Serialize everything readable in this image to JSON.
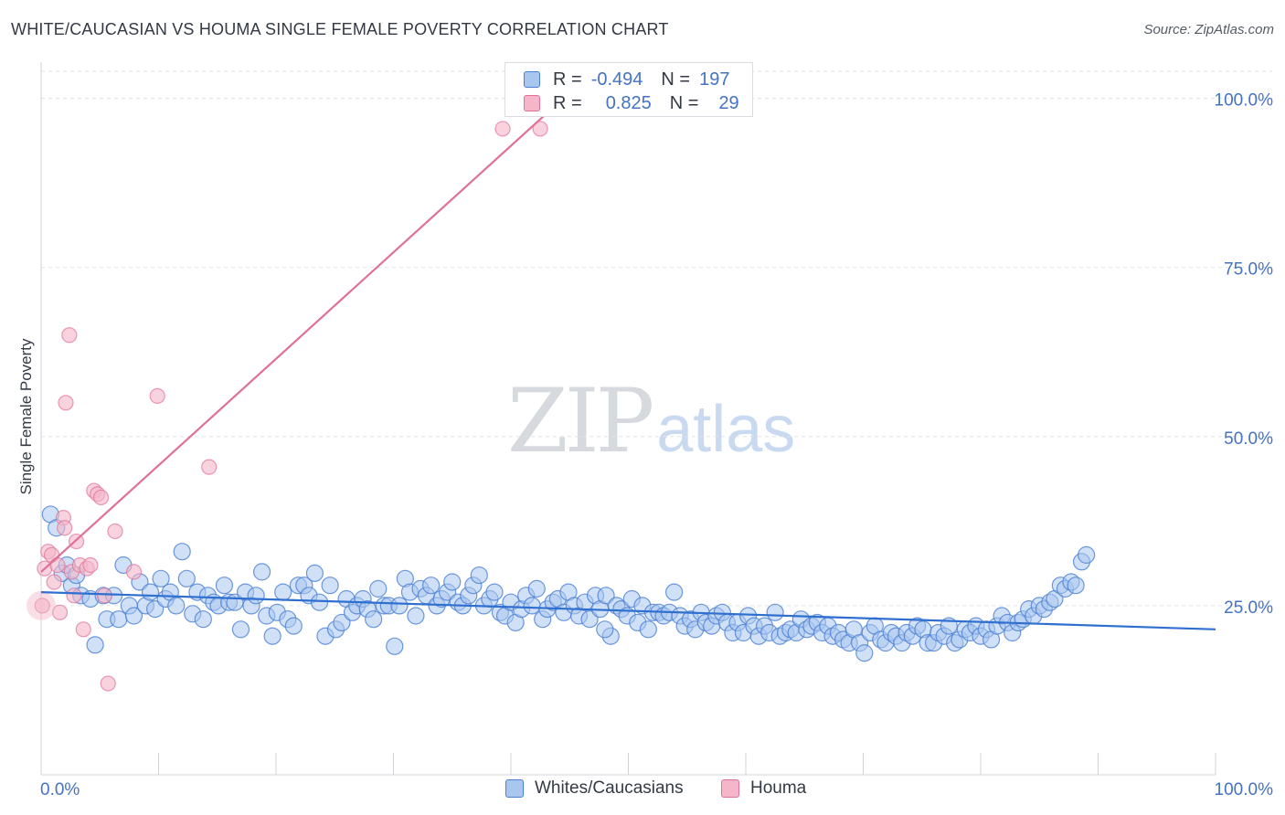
{
  "title": "WHITE/CAUCASIAN VS HOUMA SINGLE FEMALE POVERTY CORRELATION CHART",
  "source": "Source: ZipAtlas.com",
  "watermark": {
    "zip": "ZIP",
    "atlas": "atlas"
  },
  "legend": {
    "rows": [
      {
        "r_label": "R =",
        "r_value": "-0.494",
        "n_label": "N =",
        "n_value": "197",
        "color": "#a9c6ee"
      },
      {
        "r_label": "R =",
        "r_value": "0.825",
        "n_label": "N =",
        "n_value": "29",
        "color": "#f4b6c8"
      }
    ]
  },
  "bottom_legend": [
    {
      "label": "Whites/Caucasians",
      "color": "#a9c6ee"
    },
    {
      "label": "Houma",
      "color": "#f4b6c8"
    }
  ],
  "chart_data": {
    "type": "scatter",
    "title": "WHITE/CAUCASIAN VS HOUMA SINGLE FEMALE POVERTY CORRELATION CHART",
    "xlabel": "",
    "ylabel": "Single Female Poverty",
    "xlim": [
      0,
      100
    ],
    "ylim": [
      0,
      104
    ],
    "x_tick_labels": [
      "0.0%",
      "100.0%"
    ],
    "y_ticks": [
      25,
      50,
      75,
      100
    ],
    "y_tick_labels": [
      "25.0%",
      "50.0%",
      "75.0%",
      "100.0%"
    ],
    "grid": "horizontal-dashed",
    "legend_position": "top-center",
    "colors": {
      "whites": "#4a7fd4",
      "whites_fill": "#a9c6ee",
      "houma": "#e0709a",
      "houma_fill": "#f4b6c8"
    },
    "series": [
      {
        "name": "Whites/Caucasians",
        "trend": {
          "x": [
            0,
            100
          ],
          "y": [
            27.0,
            21.5
          ]
        },
        "points": [
          [
            0.8,
            38.5
          ],
          [
            1.3,
            36.5
          ],
          [
            1.8,
            29.8
          ],
          [
            2.2,
            31.0
          ],
          [
            2.6,
            28.0
          ],
          [
            3.0,
            29.5
          ],
          [
            3.4,
            26.5
          ],
          [
            4.2,
            26.0
          ],
          [
            4.6,
            19.2
          ],
          [
            5.3,
            26.5
          ],
          [
            5.6,
            23.0
          ],
          [
            6.2,
            26.5
          ],
          [
            6.6,
            23.0
          ],
          [
            7.0,
            31.0
          ],
          [
            7.5,
            25.0
          ],
          [
            7.9,
            23.5
          ],
          [
            8.4,
            28.5
          ],
          [
            8.9,
            25.0
          ],
          [
            9.3,
            27.0
          ],
          [
            9.7,
            24.5
          ],
          [
            10.2,
            29.0
          ],
          [
            10.6,
            26.0
          ],
          [
            11.0,
            27.0
          ],
          [
            11.5,
            25.0
          ],
          [
            12.0,
            33.0
          ],
          [
            12.4,
            29.0
          ],
          [
            12.9,
            23.8
          ],
          [
            13.3,
            27.0
          ],
          [
            13.8,
            23.0
          ],
          [
            14.2,
            26.5
          ],
          [
            14.7,
            25.5
          ],
          [
            15.1,
            25.0
          ],
          [
            15.6,
            28.0
          ],
          [
            16.0,
            25.5
          ],
          [
            16.5,
            25.5
          ],
          [
            17.0,
            21.5
          ],
          [
            17.4,
            27.0
          ],
          [
            17.9,
            25.0
          ],
          [
            18.3,
            26.5
          ],
          [
            18.8,
            30.0
          ],
          [
            19.2,
            23.5
          ],
          [
            19.7,
            20.5
          ],
          [
            20.1,
            24.0
          ],
          [
            20.6,
            27.0
          ],
          [
            21.0,
            23.0
          ],
          [
            21.5,
            22.0
          ],
          [
            21.9,
            28.0
          ],
          [
            22.4,
            28.0
          ],
          [
            22.8,
            26.5
          ],
          [
            23.3,
            29.8
          ],
          [
            23.7,
            25.5
          ],
          [
            24.2,
            20.5
          ],
          [
            24.6,
            28.0
          ],
          [
            25.1,
            21.5
          ],
          [
            25.6,
            22.5
          ],
          [
            26.0,
            26.0
          ],
          [
            26.5,
            24.0
          ],
          [
            26.9,
            25.0
          ],
          [
            27.4,
            26.0
          ],
          [
            27.8,
            24.5
          ],
          [
            28.3,
            23.0
          ],
          [
            28.7,
            27.5
          ],
          [
            29.2,
            25.0
          ],
          [
            29.6,
            25.0
          ],
          [
            30.1,
            19.0
          ],
          [
            30.5,
            25.0
          ],
          [
            31.0,
            29.0
          ],
          [
            31.4,
            27.0
          ],
          [
            31.9,
            23.5
          ],
          [
            32.3,
            27.5
          ],
          [
            32.8,
            26.5
          ],
          [
            33.2,
            28.0
          ],
          [
            33.7,
            25.0
          ],
          [
            34.1,
            26.0
          ],
          [
            34.6,
            27.0
          ],
          [
            35.0,
            28.5
          ],
          [
            35.5,
            25.5
          ],
          [
            35.9,
            25.0
          ],
          [
            36.4,
            26.5
          ],
          [
            36.8,
            28.0
          ],
          [
            37.3,
            29.5
          ],
          [
            37.7,
            25.0
          ],
          [
            38.2,
            26.0
          ],
          [
            38.6,
            27.0
          ],
          [
            39.1,
            24.0
          ],
          [
            39.5,
            23.5
          ],
          [
            40.0,
            25.5
          ],
          [
            40.4,
            22.5
          ],
          [
            40.9,
            24.5
          ],
          [
            41.3,
            26.5
          ],
          [
            41.8,
            25.0
          ],
          [
            42.2,
            27.5
          ],
          [
            42.7,
            23.0
          ],
          [
            43.1,
            24.5
          ],
          [
            43.6,
            25.5
          ],
          [
            44.0,
            26.0
          ],
          [
            44.5,
            24.0
          ],
          [
            44.9,
            27.0
          ],
          [
            45.4,
            25.0
          ],
          [
            45.8,
            23.5
          ],
          [
            46.3,
            25.5
          ],
          [
            46.7,
            23.0
          ],
          [
            47.2,
            26.5
          ],
          [
            47.6,
            24.5
          ],
          [
            48.1,
            26.5
          ],
          [
            48.5,
            20.5
          ],
          [
            49.0,
            25.0
          ],
          [
            49.4,
            24.5
          ],
          [
            49.9,
            23.5
          ],
          [
            50.3,
            26.0
          ],
          [
            50.8,
            22.5
          ],
          [
            51.2,
            25.0
          ],
          [
            51.7,
            21.5
          ],
          [
            52.1,
            24.0
          ],
          [
            52.6,
            24.0
          ],
          [
            53.0,
            23.5
          ],
          [
            53.5,
            24.0
          ],
          [
            53.9,
            27.0
          ],
          [
            54.4,
            23.5
          ],
          [
            54.8,
            22.0
          ],
          [
            55.3,
            23.0
          ],
          [
            55.7,
            21.5
          ],
          [
            56.2,
            24.0
          ],
          [
            56.6,
            22.5
          ],
          [
            57.1,
            22.0
          ],
          [
            57.5,
            23.5
          ],
          [
            58.0,
            24.0
          ],
          [
            58.4,
            22.5
          ],
          [
            58.9,
            21.0
          ],
          [
            59.3,
            22.5
          ],
          [
            59.8,
            21.0
          ],
          [
            60.2,
            23.5
          ],
          [
            60.7,
            22.0
          ],
          [
            61.1,
            20.5
          ],
          [
            61.6,
            22.0
          ],
          [
            62.0,
            21.0
          ],
          [
            62.5,
            24.0
          ],
          [
            62.9,
            20.5
          ],
          [
            63.4,
            21.0
          ],
          [
            63.8,
            21.5
          ],
          [
            64.3,
            21.0
          ],
          [
            64.7,
            23.0
          ],
          [
            65.2,
            21.5
          ],
          [
            65.6,
            22.0
          ],
          [
            66.1,
            22.5
          ],
          [
            66.5,
            21.0
          ],
          [
            67.0,
            22.0
          ],
          [
            67.4,
            20.5
          ],
          [
            67.9,
            21.0
          ],
          [
            68.3,
            20.0
          ],
          [
            68.8,
            19.5
          ],
          [
            69.2,
            21.5
          ],
          [
            69.7,
            19.5
          ],
          [
            70.1,
            18.0
          ],
          [
            70.6,
            21.0
          ],
          [
            71.0,
            22.0
          ],
          [
            71.5,
            20.0
          ],
          [
            71.9,
            19.5
          ],
          [
            72.4,
            21.0
          ],
          [
            72.8,
            20.5
          ],
          [
            73.3,
            19.5
          ],
          [
            73.7,
            21.0
          ],
          [
            74.2,
            20.5
          ],
          [
            74.6,
            22.0
          ],
          [
            75.1,
            21.5
          ],
          [
            75.5,
            19.5
          ],
          [
            76.0,
            19.5
          ],
          [
            76.4,
            21.0
          ],
          [
            76.9,
            20.5
          ],
          [
            77.3,
            22.0
          ],
          [
            77.8,
            19.5
          ],
          [
            78.2,
            20.0
          ],
          [
            78.7,
            21.5
          ],
          [
            79.1,
            21.0
          ],
          [
            79.6,
            22.0
          ],
          [
            80.0,
            20.5
          ],
          [
            80.5,
            21.5
          ],
          [
            80.9,
            20.0
          ],
          [
            81.4,
            22.0
          ],
          [
            81.8,
            23.5
          ],
          [
            82.3,
            22.5
          ],
          [
            82.7,
            21.0
          ],
          [
            83.2,
            22.5
          ],
          [
            83.6,
            23.0
          ],
          [
            84.1,
            24.5
          ],
          [
            84.5,
            23.5
          ],
          [
            85.0,
            25.0
          ],
          [
            85.4,
            24.5
          ],
          [
            85.9,
            25.5
          ],
          [
            86.3,
            26.0
          ],
          [
            86.8,
            28.0
          ],
          [
            87.2,
            27.5
          ],
          [
            87.7,
            28.5
          ],
          [
            88.1,
            28.0
          ],
          [
            88.6,
            31.5
          ],
          [
            89.0,
            32.5
          ],
          [
            48.0,
            21.5
          ]
        ]
      },
      {
        "name": "Houma",
        "trend": {
          "x": [
            0,
            47
          ],
          "y": [
            30.0,
            104.0
          ]
        },
        "points": [
          [
            0.1,
            25.0
          ],
          [
            0.3,
            30.5
          ],
          [
            0.6,
            33.0
          ],
          [
            0.9,
            32.5
          ],
          [
            1.1,
            28.5
          ],
          [
            1.4,
            31.0
          ],
          [
            1.6,
            24.0
          ],
          [
            1.9,
            38.0
          ],
          [
            2.1,
            55.0
          ],
          [
            2.4,
            65.0
          ],
          [
            2.6,
            30.0
          ],
          [
            2.8,
            26.5
          ],
          [
            3.0,
            34.5
          ],
          [
            3.3,
            31.0
          ],
          [
            3.6,
            21.5
          ],
          [
            3.9,
            30.5
          ],
          [
            4.2,
            31.0
          ],
          [
            4.5,
            42.0
          ],
          [
            4.8,
            41.5
          ],
          [
            5.1,
            41.0
          ],
          [
            5.4,
            26.5
          ],
          [
            5.7,
            13.5
          ],
          [
            6.3,
            36.0
          ],
          [
            7.9,
            30.0
          ],
          [
            9.9,
            56.0
          ],
          [
            14.3,
            45.5
          ],
          [
            39.3,
            95.5
          ],
          [
            42.5,
            95.5
          ],
          [
            2.0,
            36.5
          ]
        ]
      }
    ]
  }
}
